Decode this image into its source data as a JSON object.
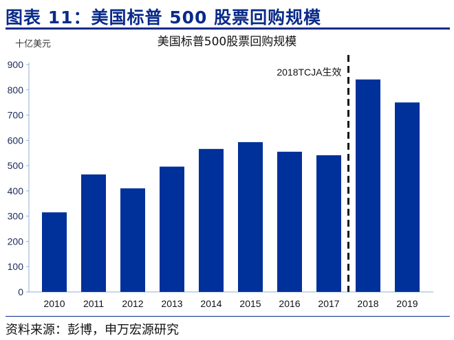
{
  "header": {
    "title": "图表 11：美国标普 500 股票回购规模"
  },
  "footer": {
    "source": "资料来源：彭博，申万宏源研究"
  },
  "chart_data": {
    "type": "bar",
    "title": "美国标普500股票回购规模",
    "ylabel": "十亿美元",
    "xlabel": "",
    "categories": [
      "2010",
      "2011",
      "2012",
      "2013",
      "2014",
      "2015",
      "2016",
      "2017",
      "2018",
      "2019"
    ],
    "values": [
      315,
      465,
      410,
      496,
      566,
      593,
      555,
      541,
      841,
      750
    ],
    "ylim": [
      0,
      900
    ],
    "yticks": [
      0,
      100,
      200,
      300,
      400,
      500,
      600,
      700,
      800,
      900
    ],
    "grid": false,
    "bar_color": "#00309a",
    "annotation": {
      "text": "2018TCJA生效",
      "between": [
        "2017",
        "2018"
      ]
    }
  }
}
